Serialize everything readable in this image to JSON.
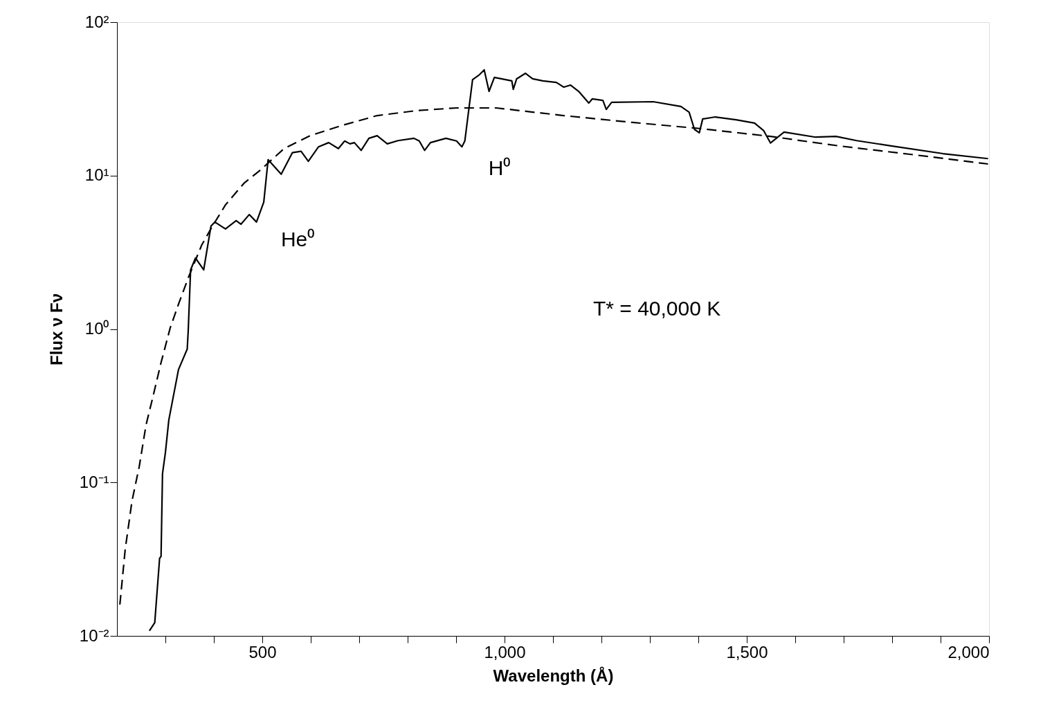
{
  "chart_data": {
    "type": "line",
    "xlabel": "Wavelength (Å)",
    "ylabel": "Flux ν Fν",
    "log": "y",
    "xlim": [
      200,
      2000
    ],
    "ylim": [
      0.01,
      100
    ],
    "xticks": [
      {
        "value": 300,
        "label": null
      },
      {
        "value": 400,
        "label": null
      },
      {
        "value": 500,
        "label": "500"
      },
      {
        "value": 600,
        "label": null
      },
      {
        "value": 700,
        "label": null
      },
      {
        "value": 800,
        "label": null
      },
      {
        "value": 900,
        "label": null
      },
      {
        "value": 1000,
        "label": "1,000"
      },
      {
        "value": 1100,
        "label": null
      },
      {
        "value": 1200,
        "label": null
      },
      {
        "value": 1300,
        "label": null
      },
      {
        "value": 1400,
        "label": null
      },
      {
        "value": 1500,
        "label": "1,500"
      },
      {
        "value": 1600,
        "label": null
      },
      {
        "value": 1700,
        "label": null
      },
      {
        "value": 1800,
        "label": null
      },
      {
        "value": 1900,
        "label": null
      },
      {
        "value": 2000,
        "label": "2,000"
      }
    ],
    "yticks": [
      {
        "value": 0.01,
        "label": "10⁻²"
      },
      {
        "value": 0.1,
        "label": "10⁻¹"
      },
      {
        "value": 1,
        "label": "10⁰"
      },
      {
        "value": 10,
        "label": "10¹"
      },
      {
        "value": 100,
        "label": "10²"
      }
    ],
    "series": [
      {
        "color": "#000000",
        "line_style": "solid",
        "x": [
          267,
          278,
          288,
          291,
          294,
          300,
          307,
          327,
          345,
          347,
          352,
          362,
          379,
          394,
          402,
          424,
          446,
          456,
          473,
          488,
          503,
          512,
          539,
          562,
          580,
          595,
          616,
          637,
          657,
          670,
          681,
          690,
          704,
          720,
          737,
          758,
          780,
          813,
          824,
          835,
          847,
          879,
          901,
          912,
          918,
          934,
          948,
          958,
          968,
          979,
          1015,
          1018,
          1025,
          1043,
          1058,
          1079,
          1107,
          1122,
          1136,
          1153,
          1174,
          1181,
          1203,
          1210,
          1221,
          1307,
          1364,
          1381,
          1392,
          1402,
          1409,
          1435,
          1478,
          1516,
          1535,
          1549,
          1577,
          1642,
          1684,
          1727,
          1798,
          1905,
          1998
        ],
        "values": [
          0.0108,
          0.0122,
          0.032,
          0.033,
          0.114,
          0.157,
          0.255,
          0.544,
          0.74,
          0.96,
          2.43,
          2.9,
          2.43,
          4.68,
          4.98,
          4.49,
          5.08,
          4.82,
          5.57,
          4.98,
          6.72,
          12.7,
          10.2,
          14.1,
          14.4,
          12.4,
          15.4,
          16.4,
          15.0,
          16.8,
          16.1,
          16.4,
          14.6,
          17.5,
          18.2,
          16.1,
          16.9,
          17.5,
          16.8,
          14.6,
          16.4,
          17.5,
          16.8,
          15.4,
          16.8,
          42.2,
          45.4,
          48.9,
          35.4,
          43.6,
          41.4,
          36.5,
          42.7,
          46.4,
          42.7,
          41.4,
          40.5,
          37.7,
          38.9,
          35.4,
          29.7,
          31.6,
          30.9,
          27.0,
          30.0,
          30.3,
          28.2,
          25.9,
          20.0,
          19.0,
          23.4,
          24.1,
          23.1,
          22.0,
          19.6,
          16.3,
          19.2,
          17.8,
          18.0,
          16.9,
          15.6,
          13.9,
          12.9
        ]
      },
      {
        "color": "#000000",
        "line_style": "dashed",
        "x": [
          206,
          217,
          231,
          246,
          260,
          274,
          291,
          310,
          327,
          348,
          375,
          397,
          424,
          462,
          495,
          545,
          599,
          666,
          737,
          818,
          901,
          983,
          1122,
          1264,
          1407,
          1549,
          1691,
          1834,
          1998
        ],
        "values": [
          0.016,
          0.0366,
          0.0757,
          0.127,
          0.237,
          0.359,
          0.604,
          1.02,
          1.45,
          2.19,
          3.53,
          4.68,
          6.44,
          8.9,
          10.8,
          15.0,
          18.2,
          21.3,
          24.6,
          26.5,
          27.6,
          27.6,
          24.6,
          22.2,
          20.2,
          18.0,
          15.6,
          13.8,
          11.9
        ]
      }
    ],
    "annotations": [
      "He⁰",
      "H⁰",
      "T* = 40,000 K"
    ]
  }
}
